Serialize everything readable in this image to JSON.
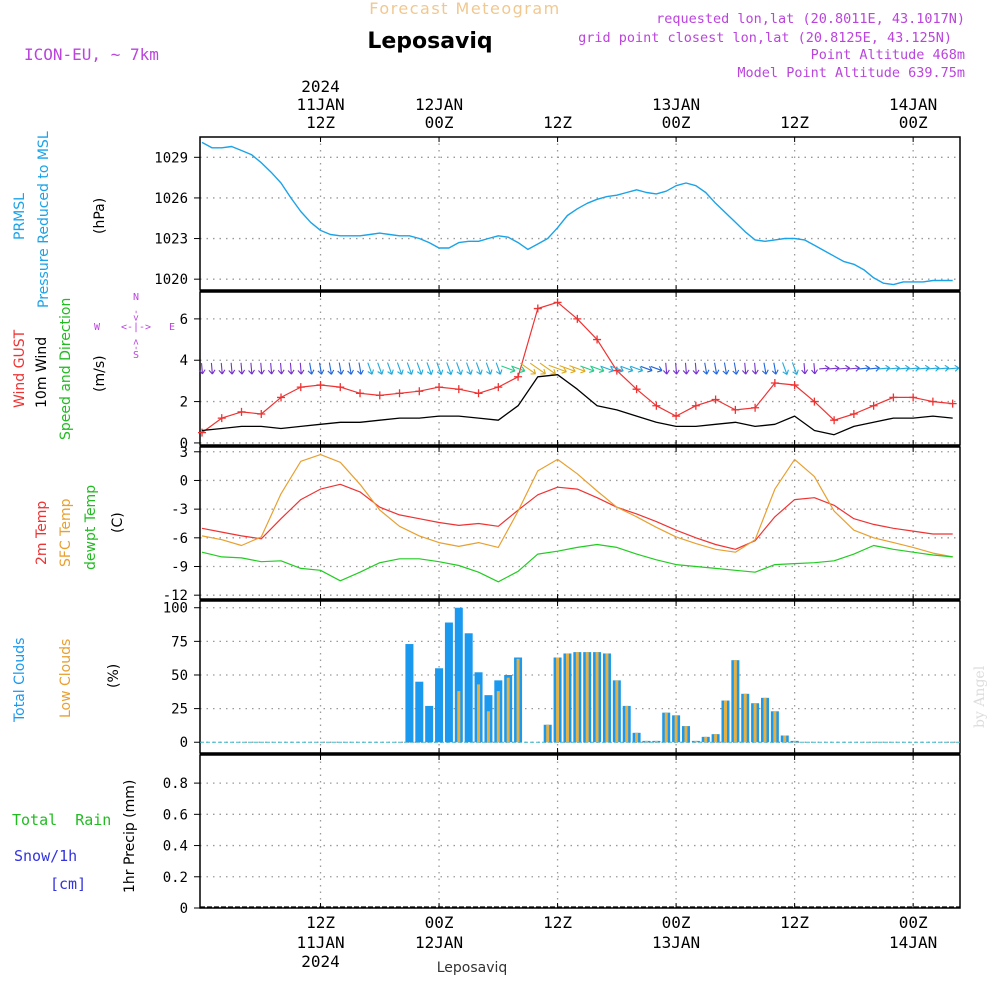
{
  "header": {
    "title": "Leposaviq",
    "subtitle": "Forecast Meteogram",
    "model": "ICON-EU, ~ 7km",
    "requested": "requested lon,lat (20.8011E, 43.1017N)",
    "grid_point": "grid point closest lon,lat (20.8125E, 43.125N)",
    "point_altitude": "Point Altitude 468m",
    "model_altitude": "Model Point Altitude 639.75m"
  },
  "time_axis": {
    "top_year": "2024",
    "labels": [
      {
        "t": 12,
        "l1": "11JAN",
        "l2": "12Z"
      },
      {
        "t": 24,
        "l1": "12JAN",
        "l2": "00Z"
      },
      {
        "t": 36,
        "l1": "",
        "l2": "12Z"
      },
      {
        "t": 48,
        "l1": "13JAN",
        "l2": "00Z"
      },
      {
        "t": 60,
        "l1": "",
        "l2": "12Z"
      },
      {
        "t": 72,
        "l1": "14JAN",
        "l2": "00Z"
      }
    ],
    "bottom": [
      {
        "t": 12,
        "l1": "12Z",
        "l2": "11JAN",
        "l3": "2024"
      },
      {
        "t": 24,
        "l1": "00Z",
        "l2": "12JAN",
        "l3": ""
      },
      {
        "t": 36,
        "l1": "12Z",
        "l2": "",
        "l3": ""
      },
      {
        "t": 48,
        "l1": "00Z",
        "l2": "13JAN",
        "l3": ""
      },
      {
        "t": 60,
        "l1": "12Z",
        "l2": "",
        "l3": ""
      },
      {
        "t": 72,
        "l1": "00Z",
        "l2": "14JAN",
        "l3": ""
      }
    ],
    "footer": "Leposaviq"
  },
  "panels": {
    "pressure": {
      "label1": "PRMSL",
      "label2": "Pressure Reduced to MSL",
      "unit": "(hPa)"
    },
    "wind": {
      "label_gust": "Wind GUST",
      "label_wind": "10m Wind",
      "label_dir": "Speed and Direction",
      "unit": "(m/s)",
      "compass_n": "N",
      "compass_s": "S",
      "compass_w": "W",
      "compass_e": "E",
      "compass_mid": "<-|->"
    },
    "temp": {
      "label_2m": "2m Temp",
      "label_sfc": "SFC Temp",
      "label_dew": "dewpt Temp",
      "unit": "(C)"
    },
    "clouds": {
      "label_total": "Total Clouds",
      "label_low": "Low Clouds",
      "unit": "(%)"
    },
    "precip": {
      "label_rain": "Total  Rain",
      "label_snow": "Snow/1h",
      "label_cm": "[cm]",
      "unit": "1hr Precip (mm)"
    }
  },
  "watermark": "by Angel",
  "colors": {
    "pressure": "#1aa3e8",
    "gust": "#ee3333",
    "wind": "#000000",
    "t2m": "#ee3333",
    "sfc": "#e8a030",
    "dew": "#22cc22",
    "total_clouds": "#1a99ee",
    "low_clouds": "#e8b040",
    "label_purple": "#bb44dd",
    "rain_label": "#22bb22",
    "snow_label": "#3333dd"
  },
  "chart_data": [
    {
      "type": "line",
      "name": "PRMSL",
      "x_unit": "hours from 11JAN 00Z",
      "ylabel": "(hPa)",
      "yticks": [
        1020,
        1023,
        1026,
        1029
      ],
      "ylim": [
        1019.2,
        1030.5
      ],
      "x": [
        0,
        1,
        2,
        3,
        4,
        5,
        6,
        7,
        8,
        9,
        10,
        11,
        12,
        13,
        14,
        15,
        16,
        17,
        18,
        19,
        20,
        21,
        22,
        23,
        24,
        25,
        26,
        27,
        28,
        29,
        30,
        31,
        32,
        33,
        34,
        35,
        36,
        37,
        38,
        39,
        40,
        41,
        42,
        43,
        44,
        45,
        46,
        47,
        48,
        49,
        50,
        51,
        52,
        53,
        54,
        55,
        56,
        57,
        58,
        59,
        60,
        61,
        62,
        63,
        64,
        65,
        66,
        67,
        68,
        69,
        70,
        71,
        72,
        73,
        74,
        75,
        76
      ],
      "values": [
        1030.1,
        1029.7,
        1029.7,
        1029.8,
        1029.5,
        1029.2,
        1028.6,
        1027.9,
        1027.1,
        1026.0,
        1025.0,
        1024.2,
        1023.6,
        1023.3,
        1023.2,
        1023.2,
        1023.2,
        1023.3,
        1023.4,
        1023.3,
        1023.2,
        1023.2,
        1023.0,
        1022.7,
        1022.3,
        1022.3,
        1022.7,
        1022.8,
        1022.8,
        1023.0,
        1023.2,
        1023.1,
        1022.7,
        1022.2,
        1022.6,
        1023.0,
        1023.8,
        1024.7,
        1025.2,
        1025.6,
        1025.9,
        1026.1,
        1026.2,
        1026.4,
        1026.6,
        1026.4,
        1026.3,
        1026.5,
        1026.9,
        1027.1,
        1026.9,
        1026.4,
        1025.6,
        1024.9,
        1024.2,
        1023.5,
        1022.9,
        1022.8,
        1022.9,
        1023.0,
        1023.0,
        1022.9,
        1022.5,
        1022.1,
        1021.7,
        1021.3,
        1021.1,
        1020.7,
        1020.1,
        1019.7,
        1019.6,
        1019.8,
        1019.8,
        1019.8,
        1019.9,
        1019.9,
        1019.9
      ]
    },
    {
      "type": "line",
      "name": "Wind",
      "ylabel": "(m/s)",
      "yticks": [
        0,
        2,
        4,
        6
      ],
      "ylim": [
        -0.1,
        7.3
      ],
      "x": [
        0,
        2,
        4,
        6,
        8,
        10,
        12,
        14,
        16,
        18,
        20,
        22,
        24,
        26,
        28,
        30,
        32,
        34,
        36,
        38,
        40,
        42,
        44,
        46,
        48,
        50,
        52,
        54,
        56,
        58,
        60,
        62,
        64,
        66,
        68,
        70,
        72,
        74,
        76
      ],
      "gust": [
        0.5,
        1.2,
        1.5,
        1.4,
        2.2,
        2.7,
        2.8,
        2.7,
        2.4,
        2.3,
        2.4,
        2.5,
        2.7,
        2.6,
        2.4,
        2.7,
        3.2,
        6.5,
        6.8,
        6.0,
        5.0,
        3.5,
        2.6,
        1.8,
        1.3,
        1.8,
        2.1,
        1.6,
        1.7,
        2.9,
        2.8,
        2.0,
        1.1,
        1.4,
        1.8,
        2.2,
        2.2,
        2.0,
        1.9
      ],
      "wind": [
        0.6,
        0.7,
        0.8,
        0.8,
        0.7,
        0.8,
        0.9,
        1.0,
        1.0,
        1.1,
        1.2,
        1.2,
        1.3,
        1.3,
        1.2,
        1.1,
        1.8,
        3.2,
        3.3,
        2.6,
        1.8,
        1.6,
        1.3,
        1.0,
        0.8,
        0.8,
        0.9,
        1.0,
        0.8,
        0.9,
        1.3,
        0.6,
        0.4,
        0.8,
        1.0,
        1.2,
        1.2,
        1.3,
        1.2
      ]
    },
    {
      "type": "line",
      "name": "Temperature",
      "ylabel": "(C)",
      "yticks": [
        -12,
        -9,
        -6,
        -3,
        0,
        3
      ],
      "ylim": [
        -12.4,
        3.5
      ],
      "x": [
        0,
        2,
        4,
        6,
        8,
        10,
        12,
        14,
        16,
        18,
        20,
        22,
        24,
        26,
        28,
        30,
        32,
        34,
        36,
        38,
        40,
        42,
        44,
        46,
        48,
        50,
        52,
        54,
        56,
        58,
        60,
        62,
        64,
        66,
        68,
        70,
        72,
        74,
        76
      ],
      "t2m": [
        -5.0,
        -5.4,
        -5.8,
        -6.1,
        -4.0,
        -2.0,
        -0.9,
        -0.4,
        -1.2,
        -2.8,
        -3.6,
        -4.0,
        -4.4,
        -4.7,
        -4.5,
        -4.8,
        -3.1,
        -1.5,
        -0.7,
        -0.9,
        -1.8,
        -2.8,
        -3.5,
        -4.3,
        -5.2,
        -6.0,
        -6.7,
        -7.2,
        -6.3,
        -3.8,
        -2.0,
        -1.8,
        -2.6,
        -4.0,
        -4.6,
        -5.0,
        -5.3,
        -5.6,
        -5.6
      ],
      "sfc": [
        -5.8,
        -6.2,
        -6.8,
        -5.9,
        -1.4,
        2.0,
        2.7,
        1.9,
        -0.4,
        -3.1,
        -4.8,
        -5.8,
        -6.5,
        -6.9,
        -6.5,
        -7.0,
        -3.2,
        1.0,
        2.2,
        0.7,
        -1.1,
        -2.8,
        -3.8,
        -4.9,
        -5.9,
        -6.6,
        -7.2,
        -7.5,
        -6.2,
        -0.9,
        2.2,
        0.4,
        -3.2,
        -5.2,
        -6.0,
        -6.5,
        -7.0,
        -7.6,
        -8.0
      ],
      "dew": [
        -7.5,
        -8.0,
        -8.1,
        -8.5,
        -8.4,
        -9.2,
        -9.4,
        -10.5,
        -9.6,
        -8.6,
        -8.2,
        -8.2,
        -8.5,
        -8.9,
        -9.6,
        -10.6,
        -9.5,
        -7.7,
        -7.4,
        -7.0,
        -6.7,
        -7.0,
        -7.7,
        -8.3,
        -8.8,
        -9.0,
        -9.2,
        -9.4,
        -9.6,
        -8.8,
        -8.7,
        -8.6,
        -8.4,
        -7.7,
        -6.8,
        -7.2,
        -7.5,
        -7.8,
        -8.0
      ]
    },
    {
      "type": "bar",
      "name": "Clouds",
      "ylabel": "(%)",
      "yticks": [
        0,
        25,
        50,
        75,
        100
      ],
      "ylim": [
        -8,
        105
      ],
      "x": [
        21,
        22,
        23,
        24,
        25,
        26,
        27,
        28,
        29,
        30,
        31,
        32,
        33,
        34,
        35,
        36,
        37,
        38,
        39,
        40,
        41,
        42,
        43,
        44,
        45,
        46,
        47,
        48,
        49,
        50,
        51,
        52,
        53,
        54,
        55,
        56,
        57,
        58,
        59,
        60,
        61,
        62
      ],
      "total": [
        73,
        45,
        27,
        55,
        89,
        100,
        81,
        52,
        35,
        46,
        50,
        63,
        0,
        0,
        13,
        63,
        66,
        67,
        67,
        67,
        66,
        46,
        27,
        7,
        1,
        1,
        22,
        20,
        12,
        1,
        4,
        6,
        31,
        61,
        36,
        29,
        33,
        23,
        5,
        1,
        0,
        0
      ],
      "low": [
        0,
        0,
        0,
        0,
        0,
        38,
        0,
        43,
        23,
        38,
        48,
        62,
        0,
        0,
        13,
        63,
        66,
        67,
        67,
        67,
        66,
        46,
        27,
        7,
        1,
        1,
        22,
        20,
        12,
        1,
        4,
        6,
        31,
        61,
        36,
        29,
        33,
        23,
        5,
        1,
        0,
        0
      ]
    },
    {
      "type": "line",
      "name": "Precipitation",
      "ylabel": "1hr Precip (mm)",
      "yticks": [
        0,
        0.2,
        0.4,
        0.6,
        0.8
      ],
      "ytick_labels": [
        "0",
        "0.2",
        "0.4",
        "0.6",
        "0.8"
      ],
      "ylim": [
        0,
        0.98
      ],
      "x": [
        0,
        76
      ],
      "values": [
        0,
        0
      ]
    }
  ]
}
